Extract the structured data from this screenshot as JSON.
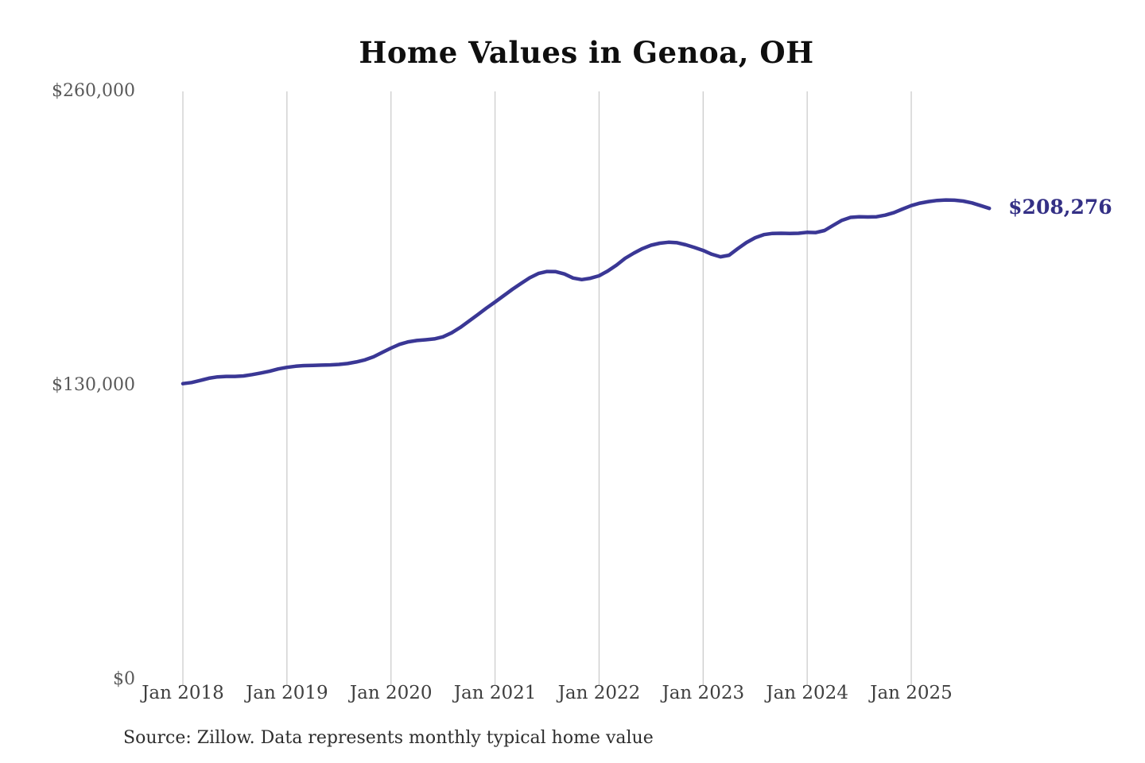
{
  "source_note": "Source: Zillow. Data represents monthly typical home value",
  "colors": {
    "line": "#3a3795",
    "end_label": "#343085",
    "grid": "#cccccc",
    "y_tick_text": "#595959",
    "x_tick_text": "#3f3f3f",
    "title_text": "#0f0f0f",
    "source_text": "#2e2e2e"
  },
  "chart_data": {
    "type": "line",
    "title": "Home Values in Genoa, OH",
    "unit": "USD",
    "x_start_month": "Jan 2018",
    "x_end_month": "Oct 2025",
    "x_tick_labels": [
      "Jan 2018",
      "Jan 2019",
      "Jan 2020",
      "Jan 2021",
      "Jan 2022",
      "Jan 2023",
      "Jan 2024",
      "Jan 2025"
    ],
    "y_ticks": [
      {
        "label": "$0",
        "value": 0
      },
      {
        "label": "$130,000",
        "value": 130000
      },
      {
        "label": "$260,000",
        "value": 260000
      }
    ],
    "ylim": [
      0,
      260000
    ],
    "grid": "vertical-only-at-january",
    "legend": "none",
    "last_value": 208276,
    "last_value_label": "$208,276",
    "series": [
      {
        "name": "Typical home value (monthly)",
        "values": [
          130800,
          131300,
          132200,
          133200,
          133800,
          134000,
          134000,
          134200,
          134800,
          135500,
          136300,
          137300,
          138000,
          138500,
          138800,
          138900,
          139000,
          139100,
          139300,
          139700,
          140400,
          141300,
          142700,
          144600,
          146500,
          148200,
          149300,
          149900,
          150200,
          150600,
          151500,
          153300,
          155700,
          158500,
          161300,
          164200,
          166900,
          169700,
          172500,
          175100,
          177600,
          179500,
          180400,
          180300,
          179300,
          177500,
          176800,
          177400,
          178500,
          180600,
          183200,
          186200,
          188500,
          190500,
          192000,
          192900,
          193300,
          193100,
          192200,
          191000,
          189700,
          188000,
          186900,
          187600,
          190500,
          193200,
          195300,
          196700,
          197200,
          197300,
          197200,
          197300,
          197700,
          197600,
          198500,
          200800,
          203000,
          204300,
          204600,
          204500,
          204600,
          205300,
          206400,
          208000,
          209500,
          210600,
          211300,
          211800,
          212000,
          211900,
          211500,
          210700,
          209500,
          208276
        ]
      }
    ]
  }
}
